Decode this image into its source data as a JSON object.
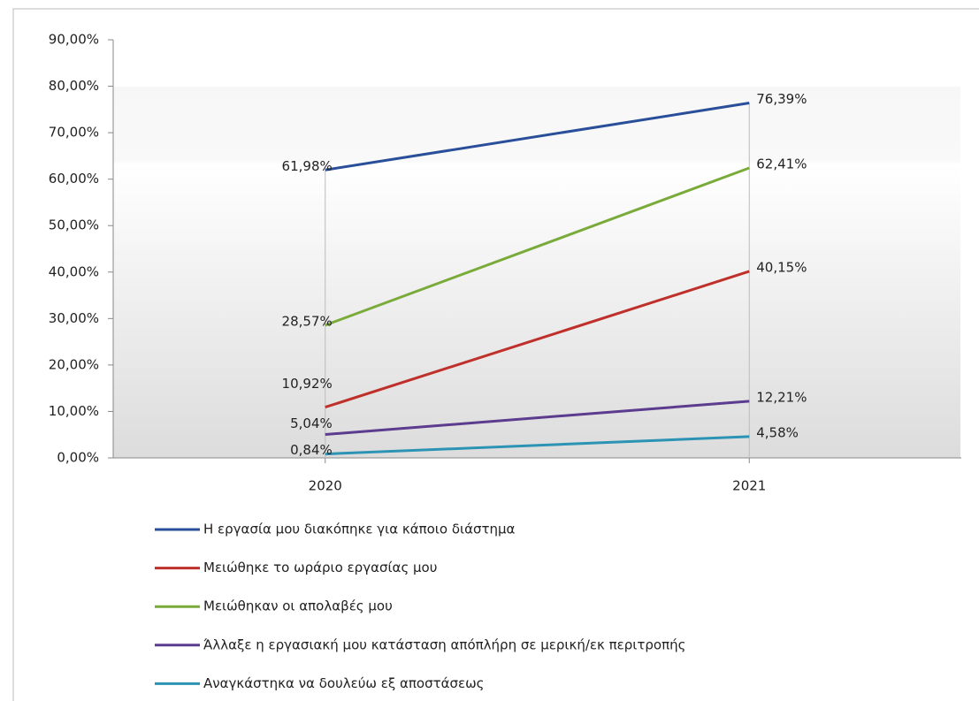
{
  "chart_data": {
    "type": "line",
    "categories": [
      "2020",
      "2021"
    ],
    "series": [
      {
        "name": "Η εργασία μου διακόπηκε για κάποιο διάστημα",
        "color": "#2a4f9a",
        "values": [
          61.98,
          76.39
        ],
        "value_labels": [
          "61,98%",
          "76,39%"
        ]
      },
      {
        "name": "Μειώθηκε το ωράριο εργασίας μου",
        "color": "#c0302b",
        "values": [
          10.92,
          40.15
        ],
        "value_labels": [
          "10,92%",
          "40,15%"
        ]
      },
      {
        "name": "Μειώθηκαν οι απολαβές μου",
        "color": "#7aab3a",
        "values": [
          28.57,
          62.41
        ],
        "value_labels": [
          "28,57%",
          "62,41%"
        ]
      },
      {
        "name": "Άλλαξε η εργασιακή μου κατάσταση απόπλήρη σε μερική/εκ περιτροπής",
        "color": "#5c3c8e",
        "values": [
          5.04,
          12.21
        ],
        "value_labels": [
          "5,04%",
          "12,21%"
        ]
      },
      {
        "name": "Αναγκάστηκα να δουλεύω εξ αποστάσεως",
        "color": "#2b93b4",
        "values": [
          0.84,
          4.58
        ],
        "value_labels": [
          "0,84%",
          "4,58%"
        ]
      }
    ],
    "ylim": [
      0,
      90
    ],
    "yticks": [
      {
        "value": 0,
        "label": "0,00%"
      },
      {
        "value": 10,
        "label": "10,00%"
      },
      {
        "value": 20,
        "label": "20,00%"
      },
      {
        "value": 30,
        "label": "30,00%"
      },
      {
        "value": 40,
        "label": "40,00%"
      },
      {
        "value": 50,
        "label": "50,00%"
      },
      {
        "value": 60,
        "label": "60,00%"
      },
      {
        "value": 70,
        "label": "70,00%"
      },
      {
        "value": 80,
        "label": "80,00%"
      },
      {
        "value": 90,
        "label": "90,00%"
      }
    ]
  }
}
